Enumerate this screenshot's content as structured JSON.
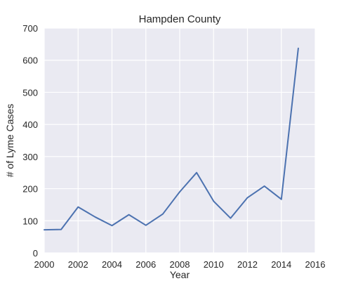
{
  "chart_data": {
    "type": "line",
    "title": "Hampden County",
    "xlabel": "Year",
    "ylabel": "# of Lyme Cases",
    "xlim": [
      2000,
      2016
    ],
    "ylim": [
      0,
      700
    ],
    "x_ticks": [
      "2000",
      "2002",
      "2004",
      "2006",
      "2008",
      "2010",
      "2012",
      "2014",
      "2016"
    ],
    "y_ticks": [
      "0",
      "100",
      "200",
      "300",
      "400",
      "500",
      "600",
      "700"
    ],
    "grid": true,
    "colors": {
      "background": "#eaeaf2",
      "grid": "#ffffff",
      "series": "#4c72b0"
    },
    "x": [
      2000,
      2001,
      2002,
      2003,
      2004,
      2005,
      2006,
      2007,
      2008,
      2009,
      2010,
      2011,
      2012,
      2013,
      2014,
      2015
    ],
    "series": [
      {
        "values": [
          72,
          73,
          143,
          112,
          85,
          119,
          86,
          121,
          190,
          250,
          161,
          108,
          172,
          208,
          167,
          637
        ]
      }
    ]
  }
}
